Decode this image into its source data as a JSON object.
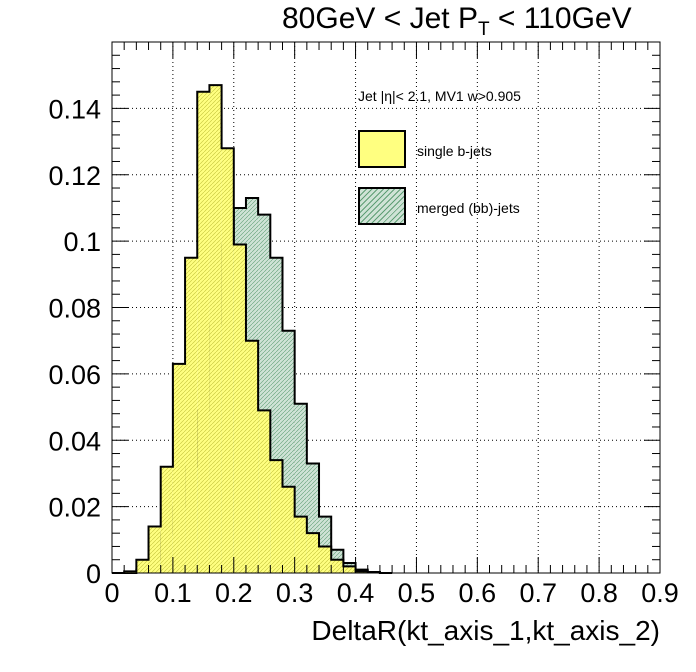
{
  "chart_data": {
    "type": "histogram",
    "title": {
      "main": "80GeV < Jet P",
      "sub": "T",
      "tail": " < 110GeV"
    },
    "xlabel": "DeltaR(kt_axis_1,kt_axis_2)",
    "ylabel": "",
    "annotation": "Jet |η|< 2.1, MV1 w>0.905",
    "xlim": [
      0,
      0.9
    ],
    "ylim": [
      0,
      0.16
    ],
    "xticks": [
      "0",
      "0.1",
      "0.2",
      "0.3",
      "0.4",
      "0.5",
      "0.6",
      "0.7",
      "0.8",
      "0.9"
    ],
    "yticks": [
      "0",
      "0.02",
      "0.04",
      "0.06",
      "0.08",
      "0.1",
      "0.12",
      "0.14"
    ],
    "grid": true,
    "legend_position": "top-right",
    "bin_width": 0.02,
    "x": [
      0.01,
      0.03,
      0.05,
      0.07,
      0.09,
      0.11,
      0.13,
      0.15,
      0.17,
      0.19,
      0.21,
      0.23,
      0.25,
      0.27,
      0.29,
      0.31,
      0.33,
      0.35,
      0.37,
      0.39,
      0.41,
      0.43,
      0.45
    ],
    "series": [
      {
        "name": "merged (bb)-jets",
        "color": "#cfe3d6",
        "hatch": "#5f9e75",
        "values": [
          0.0,
          0.0,
          0.001,
          0.004,
          0.012,
          0.02,
          0.032,
          0.049,
          0.075,
          0.099,
          0.11,
          0.113,
          0.108,
          0.095,
          0.073,
          0.051,
          0.033,
          0.017,
          0.007,
          0.003,
          0.001,
          0.0003,
          0.0
        ]
      },
      {
        "name": "single b-jets",
        "color": "#ffff80",
        "hatch": "#c2c23a",
        "values": [
          0.0,
          0.0005,
          0.004,
          0.014,
          0.032,
          0.063,
          0.095,
          0.145,
          0.147,
          0.128,
          0.099,
          0.07,
          0.049,
          0.034,
          0.026,
          0.017,
          0.012,
          0.008,
          0.004,
          0.002,
          0.0005,
          0.0002,
          0.0
        ]
      }
    ]
  }
}
